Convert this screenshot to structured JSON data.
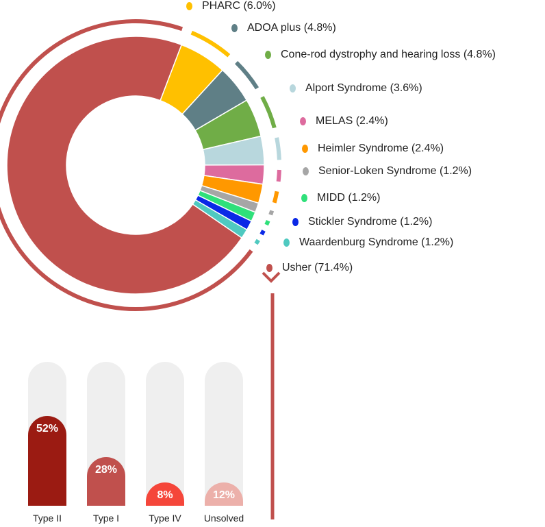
{
  "chart_data": [
    {
      "type": "pie",
      "variant": "donut",
      "categories": [
        "PHARC",
        "ADOA plus",
        "Cone-rod dystrophy and hearing loss",
        "Alport Syndrome",
        "MELAS",
        "Heimler Syndrome",
        "Senior-Loken Syndrome",
        "MIDD",
        "Stickler Syndrome",
        "Waardenburg Syndrome",
        "Usher"
      ],
      "labels": [
        "PHARC (6.0%)",
        "ADOA plus  (4.8%)",
        "Cone-rod dystrophy and hearing loss (4.8%)",
        "Alport Syndrome  (3.6%)",
        "MELAS  (2.4%)",
        "Heimler Syndrome  (2.4%)",
        "Senior-Loken Syndrome  (1.2%)",
        "MIDD  (1.2%)",
        "Stickler Syndrome  (1.2%)",
        "Waardenburg Syndrome  (1.2%)",
        "Usher  (71.4%)"
      ],
      "values": [
        6.0,
        4.8,
        4.8,
        3.6,
        2.4,
        2.4,
        1.2,
        1.2,
        1.2,
        1.2,
        71.4
      ],
      "colors": [
        "#FFC000",
        "#5F7F86",
        "#70AD47",
        "#B8D7DD",
        "#DD6B9E",
        "#FF9800",
        "#A6A6A6",
        "#2FE07A",
        "#0A28E6",
        "#4FC9C0",
        "#C0504D"
      ],
      "legend": "right"
    },
    {
      "type": "bar",
      "categories": [
        "Type II",
        "Type I",
        "Type IV",
        "Unsolved"
      ],
      "values": [
        52,
        28,
        8,
        12
      ],
      "value_labels": [
        "52%",
        "28%",
        "8%",
        "12%"
      ],
      "colors": [
        "#9B1B12",
        "#C0504D",
        "#F5463A",
        "#ECB0AA"
      ],
      "track_color": "#EFEFEF",
      "ylim": [
        0,
        100
      ]
    }
  ],
  "connector_color": "#C0504D"
}
